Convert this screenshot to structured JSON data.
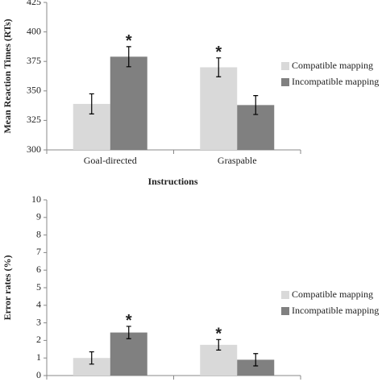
{
  "chart_data": [
    {
      "type": "bar",
      "y_label": "Mean Reaction Times (RTs)",
      "x_label": "Instructions",
      "categories": [
        "Goal-directed",
        "Graspable"
      ],
      "series": [
        {
          "name": "Compatible mapping",
          "color": "#d9d9d9",
          "values": [
            339,
            370
          ],
          "errors": [
            8.5,
            8
          ]
        },
        {
          "name": "Incompatible mapping",
          "color": "#808080",
          "values": [
            379,
            338
          ],
          "errors": [
            8.5,
            8
          ]
        }
      ],
      "annotations": [
        {
          "text": "*",
          "category": 0,
          "series": 1
        },
        {
          "text": "*",
          "category": 1,
          "series": 0
        }
      ],
      "ylim": [
        300,
        425
      ],
      "yticks": [
        300,
        325,
        350,
        375,
        400,
        425
      ]
    },
    {
      "type": "bar",
      "y_label": "Error rates (%)",
      "categories": [
        null,
        null
      ],
      "series": [
        {
          "name": "Compatible mapping",
          "color": "#d9d9d9",
          "values": [
            1.0,
            1.75
          ],
          "errors": [
            0.35,
            0.3
          ]
        },
        {
          "name": "Incompatible mapping",
          "color": "#808080",
          "values": [
            2.45,
            0.9
          ],
          "errors": [
            0.35,
            0.35
          ]
        }
      ],
      "annotations": [
        {
          "text": "*",
          "category": 0,
          "series": 1
        },
        {
          "text": "*",
          "category": 1,
          "series": 0
        }
      ],
      "ylim": [
        0,
        10
      ],
      "yticks": [
        0,
        1,
        2,
        3,
        4,
        5,
        6,
        7,
        8,
        9,
        10
      ]
    }
  ]
}
